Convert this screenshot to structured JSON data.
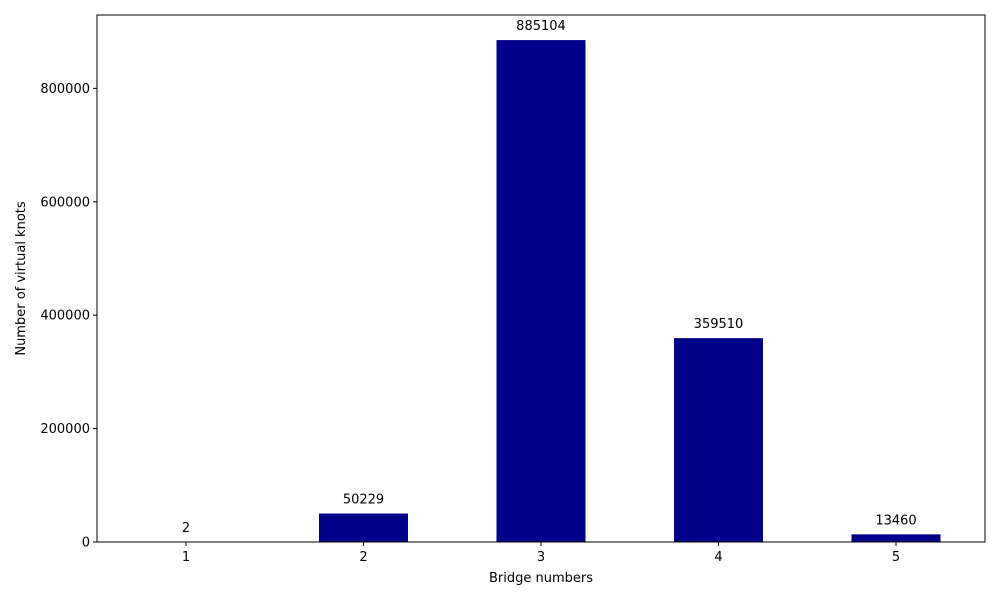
{
  "chart_data": {
    "type": "bar",
    "title": "",
    "xlabel": "Bridge numbers",
    "ylabel": "Number of virtual knots",
    "categories": [
      "1",
      "2",
      "3",
      "4",
      "5"
    ],
    "values": [
      2,
      50229,
      885104,
      359510,
      13460
    ],
    "data_labels": [
      "2",
      "50229",
      "885104",
      "359510",
      "13460"
    ],
    "ylim": [
      0,
      929359
    ],
    "yticks": [
      0,
      200000,
      400000,
      600000,
      800000
    ],
    "ytick_labels": [
      "0",
      "200000",
      "400000",
      "600000",
      "800000"
    ],
    "bar_color": "#00008b",
    "grid": false,
    "legend": "none"
  }
}
